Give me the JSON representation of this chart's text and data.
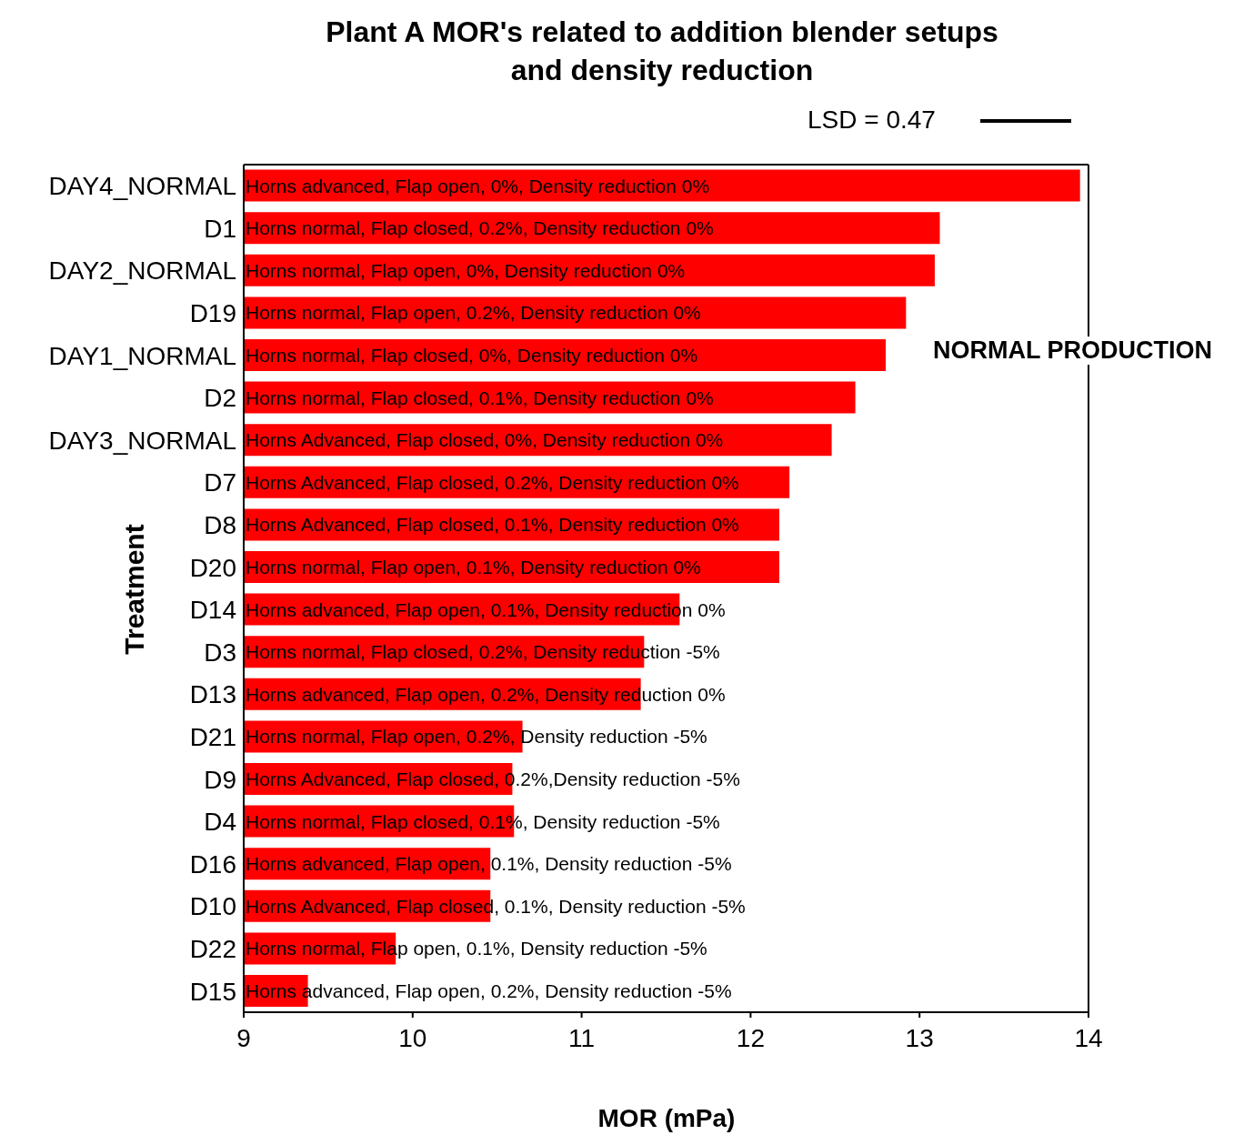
{
  "chart_data": {
    "type": "bar",
    "orientation": "horizontal",
    "title": "Plant A MOR's related to addition blender setups and density reduction",
    "xlabel": "MOR (mPa)",
    "ylabel": "Treatment",
    "categories": [
      "DAY4_NORMAL",
      "D1",
      "DAY2_NORMAL",
      "D19",
      "DAY1_NORMAL",
      "D2",
      "DAY3_NORMAL",
      "D7",
      "D8",
      "D20",
      "D14",
      "D3",
      "D13",
      "D21",
      "D9",
      "D4",
      "D16",
      "D10",
      "D22",
      "D15"
    ],
    "values": [
      13.95,
      13.12,
      13.09,
      12.92,
      12.8,
      12.62,
      12.48,
      12.23,
      12.17,
      12.17,
      11.58,
      11.37,
      11.35,
      10.65,
      10.59,
      10.6,
      10.46,
      10.46,
      9.9,
      9.38
    ],
    "color": "#ff0000",
    "xlim": [
      9,
      14
    ],
    "xticks": [
      9,
      10,
      11,
      12,
      13,
      14
    ],
    "annotations": [
      "LSD = 0.47",
      "NORMAL PRODUCTION",
      "Horns advanced, Flap open, 0%, Density reduction 0%",
      "Horns normal, Flap closed, 0.2%, Density reduction 0%",
      "Horns normal, Flap open, 0%, Density reduction 0%",
      "Horns normal, Flap open, 0.2%, Density reduction 0%",
      "Horns normal, Flap closed, 0%, Density reduction 0%",
      "Horns normal, Flap closed, 0.1%, Density reduction 0%",
      "Horns Advanced, Flap closed, 0%, Density reduction 0%",
      "Horns Advanced, Flap closed, 0.2%, Density reduction 0%",
      "Horns Advanced, Flap closed, 0.1%, Density reduction 0%",
      "Horns normal, Flap open, 0.1%, Density reduction 0%",
      "Horns advanced, Flap open, 0.1%, Density reduction 0%",
      "Horns normal, Flap closed, 0.2%, Density reduction -5%",
      "Horns advanced, Flap open, 0.2%, Density reduction 0%",
      "Horns normal, Flap open, 0.2%, Density reduction -5%",
      "Horns Advanced, Flap closed, 0.2%,Density reduction -5%",
      "Horns normal, Flap closed, 0.1%, Density reduction -5%",
      "Horns advanced, Flap open, 0.1%, Density reduction -5%",
      "Horns Advanced, Flap closed, 0.1%, Density reduction -5%",
      "Horns normal, Flap open, 0.1%, Density reduction -5%",
      "Horns advanced, Flap open, 0.2%, Density reduction -5%"
    ]
  }
}
